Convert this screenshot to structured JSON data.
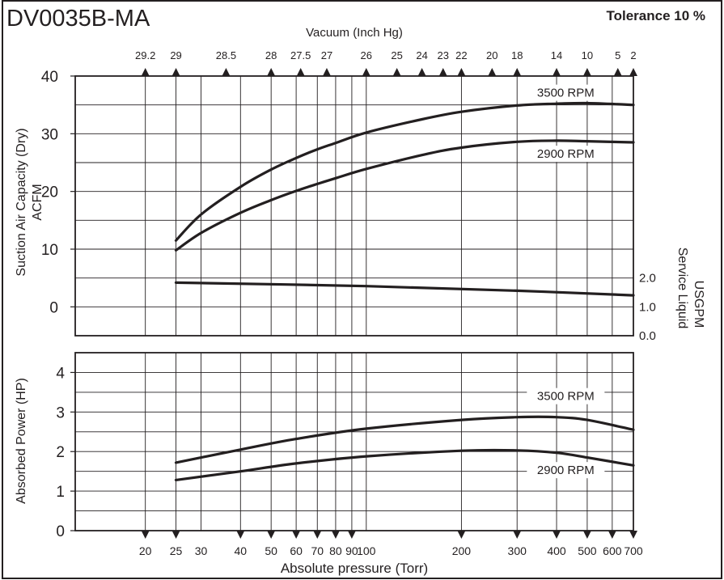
{
  "header": {
    "model": "DV0035B-MA",
    "tolerance": "Tolerance 10 %"
  },
  "colors": {
    "ink": "#231f20",
    "background": "#ffffff"
  },
  "chart_data": [
    {
      "type": "line",
      "panel": "top",
      "x_scale": "log",
      "xlabel": "Absolute pressure (Torr)",
      "top_xlabel": "Vacuum (Inch Hg)",
      "ylabel": "Suction Air Capacity (Dry) ACFM",
      "ylabel_lines": [
        "Suction Air Capacity (Dry)",
        "ACFM"
      ],
      "ylim": [
        -5,
        40
      ],
      "xlim": [
        12,
        700
      ],
      "grid": true,
      "y_ticks": [
        0,
        10,
        20,
        30,
        40
      ],
      "y_tick_labels": [
        "0",
        "10",
        "20",
        "30",
        "40"
      ],
      "x_grid": [
        20,
        25,
        30,
        40,
        50,
        60,
        70,
        80,
        90,
        100,
        200,
        300,
        400,
        500,
        600,
        700
      ],
      "y2label_lines": [
        "USGPM",
        "Service Liquid"
      ],
      "y2_ticks": [
        {
          "label": "2.0",
          "y": 5
        },
        {
          "label": "1.0",
          "y": 0
        },
        {
          "label": "0.0",
          "y": -5
        }
      ],
      "vacuum_ticks": [
        {
          "label": "29.2",
          "torr": 20
        },
        {
          "label": "29",
          "torr": 25
        },
        {
          "label": "28.5",
          "torr": 36
        },
        {
          "label": "28",
          "torr": 50
        },
        {
          "label": "27.5",
          "torr": 62
        },
        {
          "label": "27",
          "torr": 75
        },
        {
          "label": "26",
          "torr": 100
        },
        {
          "label": "25",
          "torr": 125
        },
        {
          "label": "24",
          "torr": 150
        },
        {
          "label": "23",
          "torr": 175
        },
        {
          "label": "22",
          "torr": 200
        },
        {
          "label": "20",
          "torr": 250
        },
        {
          "label": "18",
          "torr": 300
        },
        {
          "label": "14",
          "torr": 400
        },
        {
          "label": "10",
          "torr": 500
        },
        {
          "label": "5",
          "torr": 625
        },
        {
          "label": "2",
          "torr": 700
        }
      ],
      "series": [
        {
          "name": "3500 RPM",
          "label_at": 380,
          "x": [
            25,
            30,
            40,
            50,
            60,
            70,
            80,
            100,
            150,
            200,
            300,
            400,
            500,
            700
          ],
          "y": [
            11.5,
            16,
            20.8,
            23.8,
            25.8,
            27.3,
            28.4,
            30.2,
            32.5,
            33.8,
            34.9,
            35.2,
            35.3,
            35.0
          ]
        },
        {
          "name": "2900 RPM",
          "label_at": 380,
          "x": [
            25,
            30,
            40,
            50,
            60,
            70,
            80,
            100,
            150,
            200,
            300,
            400,
            500,
            700
          ],
          "y": [
            9.8,
            12.8,
            16.3,
            18.5,
            20.1,
            21.3,
            22.3,
            23.9,
            26.3,
            27.6,
            28.6,
            28.8,
            28.7,
            28.5
          ]
        },
        {
          "name": "Service Liquid",
          "x": [
            25,
            100,
            300,
            700
          ],
          "y": [
            4.2,
            3.6,
            2.8,
            2.0
          ]
        }
      ]
    },
    {
      "type": "line",
      "panel": "bottom",
      "x_scale": "log",
      "xlabel": "Absolute pressure (Torr)",
      "ylabel": "Absorbed Power (HP)",
      "ylim": [
        0,
        4.5
      ],
      "xlim": [
        12,
        700
      ],
      "grid": true,
      "y_ticks": [
        0,
        1,
        2,
        3,
        4
      ],
      "y_tick_labels": [
        "0",
        "1",
        "2",
        "3",
        "4"
      ],
      "x_ticks": [
        20,
        25,
        30,
        40,
        50,
        60,
        70,
        80,
        90,
        100,
        200,
        300,
        400,
        500,
        600,
        700
      ],
      "x_tick_labels": [
        "20",
        "25",
        "30",
        "40",
        "50",
        "60",
        "70",
        "80",
        "90",
        "100",
        "200",
        "300",
        "400",
        "500",
        "600",
        "700"
      ],
      "x_tick_markers": [
        20,
        25,
        40,
        50,
        60,
        70,
        80,
        90,
        200,
        300,
        400,
        500,
        600,
        700
      ],
      "series": [
        {
          "name": "3500 RPM",
          "label_at": 380,
          "x": [
            25,
            40,
            60,
            100,
            200,
            300,
            400,
            500,
            700
          ],
          "y": [
            1.72,
            2.05,
            2.32,
            2.58,
            2.8,
            2.87,
            2.87,
            2.8,
            2.55
          ]
        },
        {
          "name": "2900 RPM",
          "label_at": 380,
          "x": [
            25,
            40,
            60,
            100,
            200,
            300,
            400,
            500,
            700
          ],
          "y": [
            1.28,
            1.5,
            1.7,
            1.88,
            2.02,
            2.03,
            1.97,
            1.85,
            1.65
          ]
        }
      ]
    }
  ]
}
